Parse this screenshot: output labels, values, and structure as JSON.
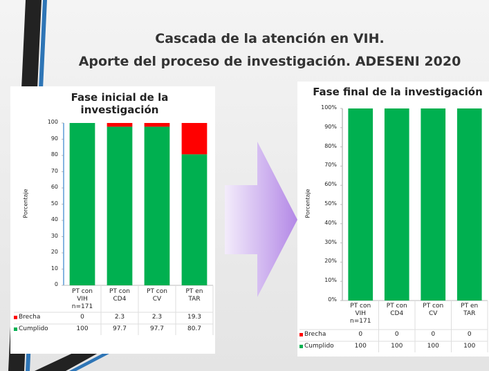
{
  "slide": {
    "title_lines": [
      "Cascada de la atención en VIH.",
      "Aporte del proceso de investigación. ADESENI 2020"
    ]
  },
  "chart_data": [
    {
      "type": "bar",
      "title": "Fase inicial de la investigación",
      "ylabel": "Porcentaje",
      "categories": [
        "PT con VIH n=171",
        "PT con CD4",
        "PT con CV",
        "PT en TAR"
      ],
      "series": [
        {
          "name": "Brecha",
          "color": "#ff0000",
          "values": [
            0,
            2.3,
            2.3,
            19.3
          ]
        },
        {
          "name": "Cumplido",
          "color": "#00b050",
          "values": [
            100,
            97.7,
            97.7,
            80.7
          ]
        }
      ],
      "stacked": true,
      "ylim": [
        0,
        100
      ],
      "yticks": [
        0,
        10,
        20,
        30,
        40,
        50,
        60,
        70,
        80,
        90,
        100
      ]
    },
    {
      "type": "bar",
      "title": "Fase final de la investigación",
      "ylabel": "Porcentaje",
      "categories": [
        "PT con VIH n=171",
        "PT con CD4",
        "PT con CV",
        "PT en TAR"
      ],
      "series": [
        {
          "name": "Brecha",
          "color": "#ff0000",
          "values": [
            0,
            0,
            0,
            0
          ]
        },
        {
          "name": "Cumplido",
          "color": "#00b050",
          "values": [
            100,
            100,
            100,
            100
          ]
        }
      ],
      "stacked": true,
      "ylim": [
        0,
        100
      ],
      "yticks": [
        {
          "value": 0,
          "label": "0%"
        },
        {
          "value": 10,
          "label": "10%"
        },
        {
          "value": 20,
          "label": "20%"
        },
        {
          "value": 30,
          "label": "30%"
        },
        {
          "value": 40,
          "label": "40%"
        },
        {
          "value": 50,
          "label": "50%"
        },
        {
          "value": 60,
          "label": "60%"
        },
        {
          "value": 70,
          "label": "70%"
        },
        {
          "value": 80,
          "label": "80%"
        },
        {
          "value": 90,
          "label": "90%"
        },
        {
          "value": 100,
          "label": "100%"
        }
      ]
    }
  ]
}
